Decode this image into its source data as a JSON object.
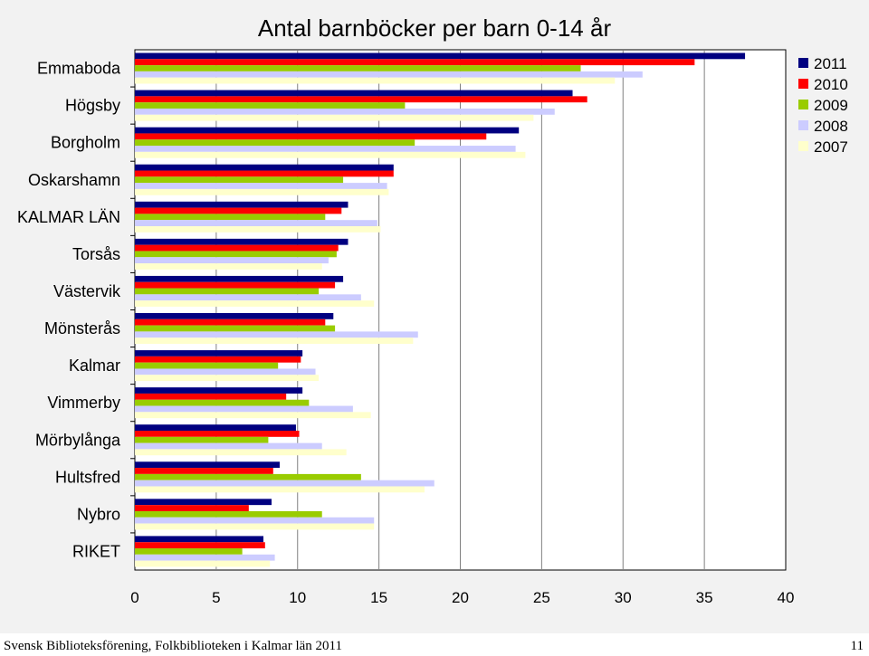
{
  "chart_data": {
    "type": "bar",
    "orientation": "horizontal",
    "title": "Antal barnböcker per barn 0-14 år",
    "categories": [
      "Emmaboda",
      "Högsby",
      "Borgholm",
      "Oskarshamn",
      "KALMAR LÄN",
      "Torsås",
      "Västervik",
      "Mönsterås",
      "Kalmar",
      "Vimmerby",
      "Mörbylånga",
      "Hultsfred",
      "Nybro",
      "RIKET"
    ],
    "series": [
      {
        "name": "2011",
        "color": "#000080",
        "values": [
          37.5,
          26.9,
          23.6,
          15.9,
          13.1,
          13.1,
          12.8,
          12.2,
          10.3,
          10.3,
          9.9,
          8.9,
          8.4,
          7.9
        ]
      },
      {
        "name": "2010",
        "color": "#ff0000",
        "values": [
          34.4,
          27.8,
          21.6,
          15.9,
          12.7,
          12.5,
          12.3,
          11.7,
          10.2,
          9.3,
          10.1,
          8.5,
          7.0,
          8.0
        ]
      },
      {
        "name": "2009",
        "color": "#99cc00",
        "values": [
          27.4,
          16.6,
          17.2,
          12.8,
          11.7,
          12.4,
          11.3,
          12.3,
          8.8,
          10.7,
          8.2,
          13.9,
          11.5,
          6.6
        ]
      },
      {
        "name": "2008",
        "color": "#ccccff",
        "values": [
          31.2,
          25.8,
          23.4,
          15.5,
          14.9,
          11.9,
          13.9,
          17.4,
          11.1,
          13.4,
          11.5,
          18.4,
          14.7,
          8.6
        ]
      },
      {
        "name": "2007",
        "color": "#ffffcc",
        "values": [
          29.5,
          24.5,
          24.0,
          15.6,
          15.1,
          11.5,
          14.7,
          17.1,
          11.3,
          14.5,
          13.0,
          17.8,
          14.7,
          8.3
        ]
      }
    ],
    "xlim": [
      0,
      40
    ],
    "xticks": [
      "0",
      "5",
      "10",
      "15",
      "20",
      "25",
      "30",
      "35",
      "40"
    ],
    "grid": true,
    "legend": "top-right"
  },
  "footer": {
    "left": "Svensk Biblioteksförening, Folkbiblioteken i Kalmar län 2011",
    "right": "11"
  }
}
